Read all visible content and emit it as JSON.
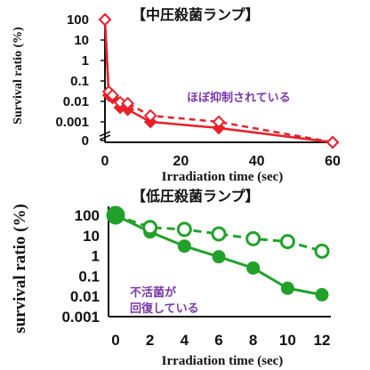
{
  "chart_data": [
    {
      "type": "line",
      "title": "【中圧殺菌ランプ】",
      "xlabel": "Irradiation time (sec)",
      "ylabel": "Survival ratio (%)",
      "xlim": [
        0,
        60
      ],
      "x_ticks": [
        "0",
        "20",
        "40",
        "60"
      ],
      "y_ticks": [
        "100",
        "10",
        "1",
        "0.1",
        "0.01",
        "0.001",
        "0"
      ],
      "yscale": "log",
      "annotation": "ほぼ抑制されている",
      "color": "#e8202a",
      "series": [
        {
          "style": "solid",
          "marker": "diamond-filled",
          "x": [
            0,
            1,
            2,
            4,
            6,
            12,
            30,
            60
          ],
          "y": [
            100,
            0.02,
            0.015,
            0.005,
            0.004,
            0.001,
            0.0005,
            0
          ]
        },
        {
          "style": "dashed",
          "marker": "diamond-open",
          "x": [
            0,
            1,
            2,
            4,
            6,
            12,
            30,
            60
          ],
          "y": [
            100,
            0.03,
            0.02,
            0.009,
            0.008,
            0.002,
            0.001,
            0
          ]
        }
      ]
    },
    {
      "type": "line",
      "title": "【低圧殺菌ランプ】",
      "xlabel": "Irradiation time (sec)",
      "ylabel": "survival ratio (%)",
      "xlim": [
        0,
        12
      ],
      "ylim": [
        0.001,
        100
      ],
      "yscale": "log",
      "x_ticks": [
        "0",
        "2",
        "4",
        "6",
        "8",
        "10",
        "12"
      ],
      "y_ticks": [
        "100",
        "10",
        "1",
        "0.1",
        "0.01",
        "0.001"
      ],
      "annotation": [
        "不活菌が",
        "回復している"
      ],
      "color": "#21a12a",
      "series": [
        {
          "style": "solid",
          "marker": "circle-filled",
          "x": [
            0,
            2,
            4,
            6,
            8,
            10,
            12
          ],
          "y": [
            100,
            15,
            3,
            0.9,
            0.25,
            0.025,
            0.012
          ]
        },
        {
          "style": "dashed",
          "marker": "circle-open",
          "x": [
            0,
            2,
            4,
            6,
            8,
            10,
            12
          ],
          "y": [
            100,
            25,
            20,
            12,
            7,
            5,
            1.7
          ]
        }
      ]
    }
  ]
}
